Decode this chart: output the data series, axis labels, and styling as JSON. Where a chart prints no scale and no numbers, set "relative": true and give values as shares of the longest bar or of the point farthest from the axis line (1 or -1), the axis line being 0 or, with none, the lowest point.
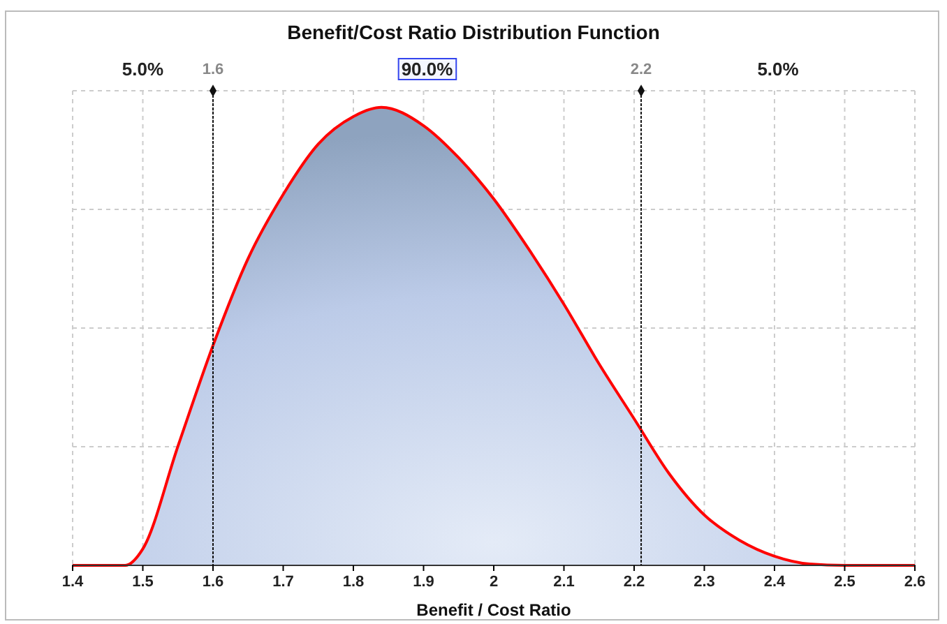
{
  "chart_data": {
    "type": "area",
    "title": "Benefit/Cost Ratio Distribution Function",
    "xlabel": "Benefit / Cost Ratio",
    "relative": true,
    "xlim": [
      1.4,
      2.6
    ],
    "xticks": [
      1.4,
      1.5,
      1.6,
      1.7,
      1.8,
      1.9,
      2,
      2.1,
      2.2,
      2.3,
      2.4,
      2.5,
      2.6
    ],
    "grid": true,
    "series": [
      {
        "color": "#ff0000",
        "x": [
          1.4,
          1.475,
          1.5,
          1.55,
          1.6,
          1.65,
          1.7,
          1.75,
          1.8,
          1.84,
          1.9,
          1.95,
          2.0,
          2.05,
          2.1,
          2.15,
          2.2,
          2.25,
          2.3,
          2.35,
          2.4,
          2.45,
          2.5,
          2.6
        ],
        "values": [
          0,
          0,
          0.036,
          0.26,
          0.48,
          0.67,
          0.81,
          0.92,
          0.98,
          1,
          0.96,
          0.89,
          0.8,
          0.69,
          0.57,
          0.44,
          0.32,
          0.2,
          0.11,
          0.055,
          0.02,
          0.003,
          0,
          0
        ]
      }
    ],
    "ref_lines": [
      {
        "axis": "x",
        "value": 1.6,
        "label": "1.6"
      },
      {
        "axis": "x",
        "value": 2.21,
        "label": "2.2"
      }
    ],
    "annotations": [
      "5.0%",
      "90.0%",
      "5.0%"
    ]
  }
}
